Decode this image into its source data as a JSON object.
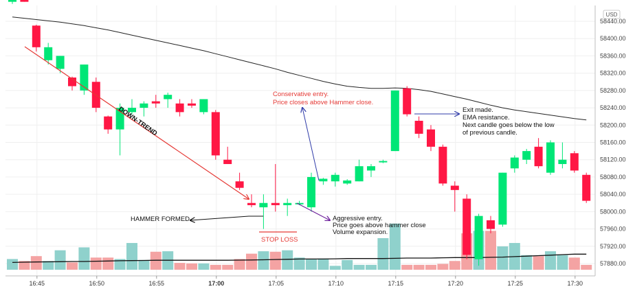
{
  "chart_data": {
    "type": "candlestick",
    "currency_label": "USD",
    "ylim": [
      57860,
      58500
    ],
    "y_ticks": [
      58440,
      58400,
      58360,
      58320,
      58280,
      58240,
      58200,
      58160,
      58120,
      58080,
      58040,
      58000,
      57960,
      57920,
      57880
    ],
    "y_tick_labels": [
      "58440.00",
      "58400.00",
      "58360.00",
      "58320.00",
      "58280.00",
      "58240.00",
      "58200.00",
      "58160.00",
      "58120.00",
      "58080.00",
      "58040.00",
      "58000.00",
      "57960.00",
      "57920.00",
      "57880.00"
    ],
    "x_ticks": [
      {
        "label": "16:45",
        "index": 2,
        "bold": false
      },
      {
        "label": "16:50",
        "index": 7,
        "bold": false
      },
      {
        "label": "16:55",
        "index": 12,
        "bold": false
      },
      {
        "label": "17:00",
        "index": 17,
        "bold": true
      },
      {
        "label": "17:05",
        "index": 22,
        "bold": false
      },
      {
        "label": "17:10",
        "index": 27,
        "bold": false
      },
      {
        "label": "17:15",
        "index": 32,
        "bold": false
      },
      {
        "label": "17:20",
        "index": 37,
        "bold": false
      },
      {
        "label": "17:25",
        "index": 42,
        "bold": false
      },
      {
        "label": "17:30",
        "index": 47,
        "bold": false
      }
    ],
    "candles": [
      {
        "o": 58485,
        "h": 58490,
        "l": 58480,
        "c": 58490
      },
      {
        "o": 58490,
        "h": 58495,
        "l": 58485,
        "c": 58485
      },
      {
        "o": 58430,
        "h": 58432,
        "l": 58370,
        "c": 58380
      },
      {
        "o": 58350,
        "h": 58390,
        "l": 58340,
        "c": 58380
      },
      {
        "o": 58330,
        "h": 58360,
        "l": 58320,
        "c": 58360
      },
      {
        "o": 58310,
        "h": 58312,
        "l": 58280,
        "c": 58290
      },
      {
        "o": 58280,
        "h": 58340,
        "l": 58270,
        "c": 58340
      },
      {
        "o": 58300,
        "h": 58310,
        "l": 58230,
        "c": 58240
      },
      {
        "o": 58220,
        "h": 58222,
        "l": 58180,
        "c": 58190
      },
      {
        "o": 58190,
        "h": 58250,
        "l": 58130,
        "c": 58240
      },
      {
        "o": 58230,
        "h": 58260,
        "l": 58225,
        "c": 58240
      },
      {
        "o": 58240,
        "h": 58255,
        "l": 58220,
        "c": 58250
      },
      {
        "o": 58255,
        "h": 58270,
        "l": 58240,
        "c": 58250
      },
      {
        "o": 58260,
        "h": 58275,
        "l": 58240,
        "c": 58270
      },
      {
        "o": 58250,
        "h": 58260,
        "l": 58220,
        "c": 58230
      },
      {
        "o": 58250,
        "h": 58260,
        "l": 58240,
        "c": 58245
      },
      {
        "o": 58230,
        "h": 58260,
        "l": 58225,
        "c": 58260
      },
      {
        "o": 58230,
        "h": 58235,
        "l": 58120,
        "c": 58130
      },
      {
        "o": 58120,
        "h": 58150,
        "l": 58110,
        "c": 58110
      },
      {
        "o": 58070,
        "h": 58090,
        "l": 58050,
        "c": 58055
      },
      {
        "o": 58020,
        "h": 58040,
        "l": 58010,
        "c": 58015
      },
      {
        "o": 58010,
        "h": 58040,
        "l": 57960,
        "c": 58020
      },
      {
        "o": 58020,
        "h": 58110,
        "l": 58000,
        "c": 58015
      },
      {
        "o": 58015,
        "h": 58030,
        "l": 57990,
        "c": 58020
      },
      {
        "o": 58020,
        "h": 58025,
        "l": 58015,
        "c": 58020
      },
      {
        "o": 58010,
        "h": 58090,
        "l": 58000,
        "c": 58080
      },
      {
        "o": 58070,
        "h": 58078,
        "l": 58062,
        "c": 58076
      },
      {
        "o": 58070,
        "h": 58090,
        "l": 58058,
        "c": 58085
      },
      {
        "o": 58065,
        "h": 58075,
        "l": 58062,
        "c": 58072
      },
      {
        "o": 58070,
        "h": 58120,
        "l": 58070,
        "c": 58105
      },
      {
        "o": 58095,
        "h": 58110,
        "l": 58080,
        "c": 58105
      },
      {
        "o": 58115,
        "h": 58120,
        "l": 58112,
        "c": 58117
      },
      {
        "o": 58140,
        "h": 58280,
        "l": 58140,
        "c": 58280
      },
      {
        "o": 58285,
        "h": 58290,
        "l": 58220,
        "c": 58225
      },
      {
        "o": 58210,
        "h": 58220,
        "l": 58170,
        "c": 58180
      },
      {
        "o": 58190,
        "h": 58200,
        "l": 58140,
        "c": 58150
      },
      {
        "o": 58150,
        "h": 58155,
        "l": 58060,
        "c": 58065
      },
      {
        "o": 58060,
        "h": 58070,
        "l": 58000,
        "c": 58050
      },
      {
        "o": 58030,
        "h": 58040,
        "l": 57890,
        "c": 57900
      },
      {
        "o": 57890,
        "h": 57995,
        "l": 57875,
        "c": 57990
      },
      {
        "o": 57980,
        "h": 57990,
        "l": 57950,
        "c": 57960
      },
      {
        "o": 57970,
        "h": 58090,
        "l": 57965,
        "c": 58090
      },
      {
        "o": 58100,
        "h": 58130,
        "l": 58090,
        "c": 58125
      },
      {
        "o": 58120,
        "h": 58145,
        "l": 58110,
        "c": 58140
      },
      {
        "o": 58150,
        "h": 58170,
        "l": 58100,
        "c": 58105
      },
      {
        "o": 58090,
        "h": 58165,
        "l": 58085,
        "c": 58160
      },
      {
        "o": 58110,
        "h": 58160,
        "l": 58100,
        "c": 58120
      },
      {
        "o": 58135,
        "h": 58140,
        "l": 58090,
        "c": 58095
      },
      {
        "o": 58085,
        "h": 58090,
        "l": 58020,
        "c": 58025
      }
    ],
    "ema": [
      58450,
      58447,
      58444,
      58441,
      58438,
      58434,
      58430,
      58425,
      58420,
      58414,
      58408,
      58402,
      58396,
      58390,
      58384,
      58378,
      58372,
      58365,
      58358,
      58351,
      58344,
      58337,
      58330,
      58322,
      58315,
      58308,
      58301,
      58295,
      58290,
      58287,
      58285,
      58285,
      58286,
      58285,
      58282,
      58278,
      58272,
      58266,
      58260,
      58253,
      58246,
      58240,
      58235,
      58231,
      58227,
      58223,
      58219,
      58215,
      58212
    ],
    "volumes": [
      22,
      18,
      28,
      18,
      40,
      15,
      46,
      25,
      25,
      22,
      55,
      20,
      37,
      38,
      14,
      13,
      13,
      10,
      10,
      22,
      33,
      38,
      37,
      40,
      25,
      22,
      23,
      8,
      20,
      10,
      10,
      65,
      95,
      10,
      10,
      10,
      12,
      18,
      75,
      80,
      80,
      48,
      55,
      30,
      28,
      38,
      30,
      25,
      10
    ],
    "volume_ma": [
      15,
      15.5,
      16,
      16.2,
      16.5,
      17,
      17,
      17.5,
      18,
      18.5,
      18.8,
      19,
      19.5,
      19.5,
      19.5,
      19.5,
      19.5,
      19.5,
      19.5,
      19.8,
      20,
      20.5,
      21,
      21.5,
      22,
      22,
      22,
      22.5,
      23,
      23,
      23,
      23,
      23.5,
      24,
      24,
      24,
      24.5,
      25,
      25,
      25,
      25.5,
      26,
      27,
      28,
      29,
      30,
      31,
      32,
      32
    ],
    "volume_max": 120,
    "colors": {
      "up": "#00e676",
      "down": "#ff1744",
      "vol_up": "#8fd1cc",
      "vol_down": "#f4a3a3",
      "ema": "#222222",
      "grid": "#efefef"
    }
  },
  "annotations": {
    "downtrend": "DOWN-TREND",
    "hammer_formed": "HAMMER FORMED",
    "stop_loss": "STOP LOSS",
    "conservative": [
      "Conservative entry.",
      "Price closes above Hammer close."
    ],
    "aggressive": [
      "Aggressive entry.",
      "Price goes above hammer close",
      "Volume expansion."
    ],
    "exit": [
      "Exit made.",
      "EMA resistance.",
      "Next candle goes below the low",
      "of previous candle."
    ]
  }
}
